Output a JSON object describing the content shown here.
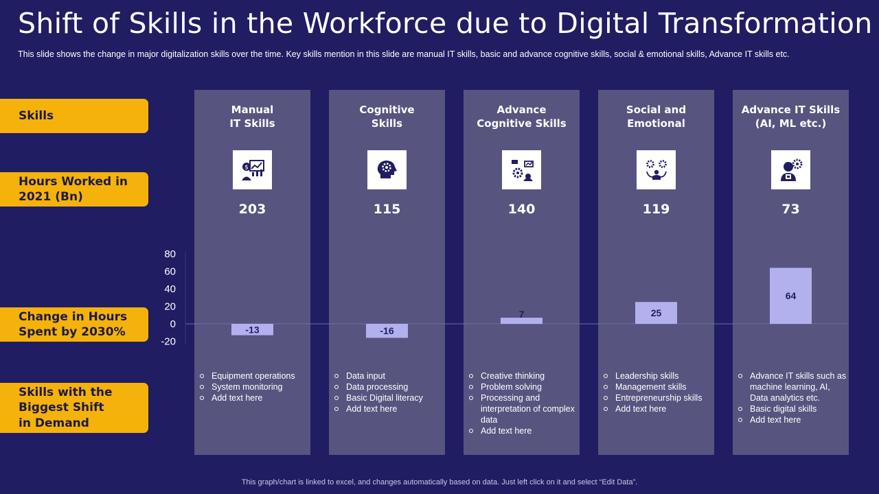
{
  "header": {
    "title": "Shift of Skills in the Workforce due to Digital Transformation",
    "subtitle": "This slide shows the change in major digitalization skills over the time. Key skills mention in this slide are manual IT skills, basic and advance  cognitive  skills, social & emotional skills, Advance IT skills etc."
  },
  "row_labels": {
    "skills": "Skills",
    "hours": "Hours Worked in\n2021 (Bn)",
    "change": "Change in Hours\nSpent by 2030%",
    "shift": "Skills with the\nBiggest Shift\nin Demand"
  },
  "columns": [
    {
      "title": "Manual\nIT Skills",
      "icon": "money-chart-person-icon",
      "hours": "203",
      "bullets": [
        "Equipment operations",
        "System monitoring",
        "Add text here"
      ]
    },
    {
      "title": "Cognitive\nSkills",
      "icon": "head-gear-icon",
      "hours": "115",
      "bullets": [
        "Data input",
        "Data processing",
        "Basic Digital literacy",
        "Add text here"
      ]
    },
    {
      "title": "Advance\nCognitive Skills",
      "icon": "gears-presentation-icon",
      "hours": "140",
      "bullets": [
        "Creative  thinking",
        "Problem  solving",
        "Processing and interpretation  of complex data",
        "Add text here"
      ]
    },
    {
      "title": "Social and\nEmotional",
      "icon": "person-gears-icon",
      "hours": "119",
      "bullets": [
        "Leadership skills",
        "Management  skills",
        "Entrepreneurship  skills",
        "Add text here"
      ]
    },
    {
      "title": "Advance IT Skills\n(AI, ML etc.)",
      "icon": "ai-robot-person-icon",
      "hours": "73",
      "bullets": [
        "Advance IT skills such as machine learning, AI, Data analytics etc.",
        "Basic digital skills",
        "Add text here"
      ]
    }
  ],
  "chart_data": {
    "type": "bar",
    "categories": [
      "Manual IT Skills",
      "Cognitive Skills",
      "Advance Cognitive Skills",
      "Social and Emotional",
      "Advance IT Skills (AI, ML etc.)"
    ],
    "values": [
      -13,
      -16,
      7,
      25,
      64
    ],
    "yticks": [
      80,
      60,
      40,
      20,
      0,
      -20
    ],
    "ylim": [
      -20,
      80
    ],
    "bar_color": "#b3b0ee"
  },
  "footer": "This graph/chart is linked to excel, and changes automatically based on data. Just left click on it and select “Edit Data”.",
  "colors": {
    "background": "#201d62",
    "column": "#57557f",
    "label": "#f5b20a",
    "bar": "#b3b0ee"
  }
}
